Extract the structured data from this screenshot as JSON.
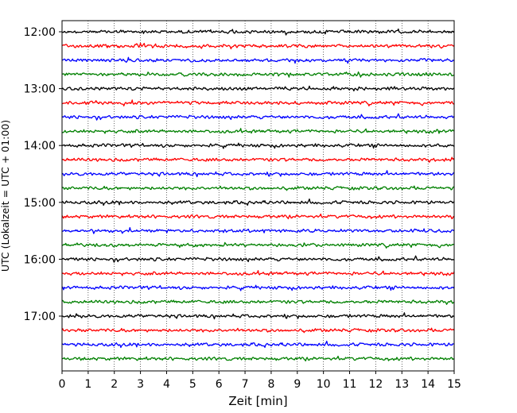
{
  "chart_data": {
    "type": "line",
    "title": "",
    "xlabel": "Zeit  [min]",
    "ylabel": "UTC (Lokalzeit = UTC + 01:00)",
    "xlim": [
      0,
      15
    ],
    "x_ticks": [
      0,
      1,
      2,
      3,
      4,
      5,
      6,
      7,
      8,
      9,
      10,
      11,
      12,
      13,
      14,
      15
    ],
    "y_ticks": [
      "12:00",
      "13:00",
      "14:00",
      "15:00",
      "16:00",
      "17:00"
    ],
    "grid": "vertical dotted at each minute",
    "trace_interval_minutes": 15,
    "trace_colors": [
      "#000000",
      "#ff0000",
      "#0000ff",
      "#008000"
    ],
    "traces": [
      {
        "start": "12:00",
        "color": "#000000"
      },
      {
        "start": "12:15",
        "color": "#ff0000"
      },
      {
        "start": "12:30",
        "color": "#0000ff"
      },
      {
        "start": "12:45",
        "color": "#008000"
      },
      {
        "start": "13:00",
        "color": "#000000"
      },
      {
        "start": "13:15",
        "color": "#ff0000"
      },
      {
        "start": "13:30",
        "color": "#0000ff"
      },
      {
        "start": "13:45",
        "color": "#008000"
      },
      {
        "start": "14:00",
        "color": "#000000"
      },
      {
        "start": "14:15",
        "color": "#ff0000"
      },
      {
        "start": "14:30",
        "color": "#0000ff"
      },
      {
        "start": "14:45",
        "color": "#008000"
      },
      {
        "start": "15:00",
        "color": "#000000"
      },
      {
        "start": "15:15",
        "color": "#ff0000"
      },
      {
        "start": "15:30",
        "color": "#0000ff"
      },
      {
        "start": "15:45",
        "color": "#008000"
      },
      {
        "start": "16:00",
        "color": "#000000"
      },
      {
        "start": "16:15",
        "color": "#ff0000"
      },
      {
        "start": "16:30",
        "color": "#0000ff"
      },
      {
        "start": "16:45",
        "color": "#008000"
      },
      {
        "start": "17:00",
        "color": "#000000"
      },
      {
        "start": "17:15",
        "color": "#ff0000"
      },
      {
        "start": "17:30",
        "color": "#0000ff"
      },
      {
        "start": "17:45",
        "color": "#008000"
      }
    ]
  }
}
